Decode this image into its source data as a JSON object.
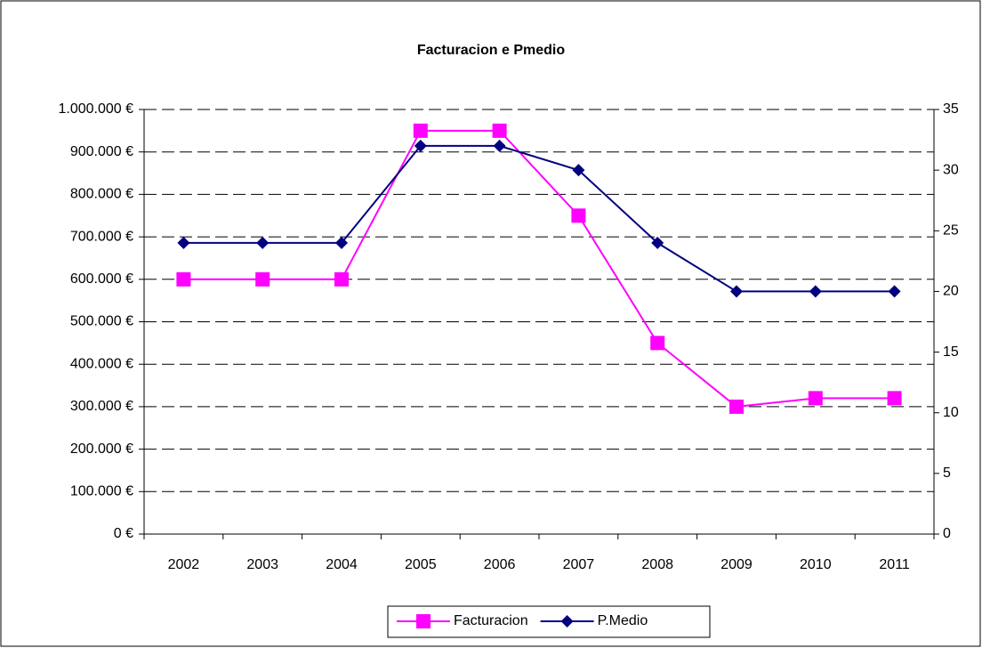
{
  "chart_data": {
    "type": "line",
    "title": "Facturacion e Pmedio",
    "categories": [
      "2002",
      "2003",
      "2004",
      "2005",
      "2006",
      "2007",
      "2008",
      "2009",
      "2010",
      "2011"
    ],
    "series": [
      {
        "name": "Facturacion",
        "color": "#ff00ff",
        "values": [
          600000,
          600000,
          600000,
          950000,
          950000,
          750000,
          450000,
          300000,
          320000,
          320000
        ]
      },
      {
        "name": "P.Medio",
        "color": "#000080",
        "axis": "y2",
        "values": [
          24,
          24,
          24,
          32,
          32,
          30,
          24,
          20,
          20,
          20
        ]
      }
    ],
    "ylim": [
      0,
      1000000
    ],
    "yticks": [
      {
        "value": 0,
        "label": "0 €"
      },
      {
        "value": 100000,
        "label": "100.000 €"
      },
      {
        "value": 200000,
        "label": "200.000 €"
      },
      {
        "value": 300000,
        "label": "300.000 €"
      },
      {
        "value": 400000,
        "label": "400.000 €"
      },
      {
        "value": 500000,
        "label": "500.000 €"
      },
      {
        "value": 600000,
        "label": "600.000 €"
      },
      {
        "value": 700000,
        "label": "700.000 €"
      },
      {
        "value": 800000,
        "label": "800.000 €"
      },
      {
        "value": 900000,
        "label": "900.000 €"
      },
      {
        "value": 1000000,
        "label": "1.000.000 €"
      }
    ],
    "y2lim": [
      0,
      35
    ],
    "y2ticks": [
      0,
      5,
      10,
      15,
      20,
      25,
      30,
      35
    ],
    "grid": true,
    "legend": "bottom"
  }
}
